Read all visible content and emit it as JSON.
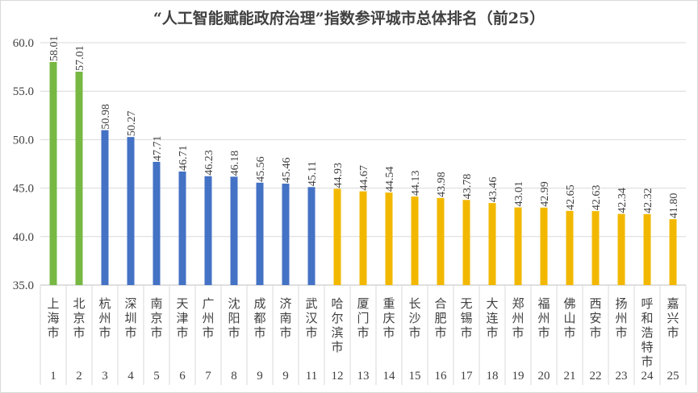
{
  "chart_data": {
    "type": "bar",
    "title": "“人工智能赋能政府治理”指数参评城市总体排名（前25）",
    "categories": [
      "上海市",
      "北京市",
      "杭州市",
      "深圳市",
      "南京市",
      "天津市",
      "广州市",
      "沈阳市",
      "成都市",
      "济南市",
      "武汉市",
      "哈尔滨市",
      "厦门市",
      "重庆市",
      "长沙市",
      "合肥市",
      "无锡市",
      "大连市",
      "郑州市",
      "福州市",
      "佛山市",
      "西安市",
      "扬州市",
      "呼和浩特市",
      "嘉兴市"
    ],
    "ranks": [
      "1",
      "2",
      "3",
      "4",
      "5",
      "6",
      "7",
      "8",
      "9",
      "9",
      "11",
      "12",
      "13",
      "14",
      "15",
      "16",
      "17",
      "18",
      "19",
      "20",
      "21",
      "22",
      "23",
      "24",
      "25"
    ],
    "values": [
      58.01,
      57.01,
      50.98,
      50.27,
      47.71,
      46.71,
      46.23,
      46.18,
      45.56,
      45.46,
      45.11,
      44.93,
      44.67,
      44.54,
      44.13,
      43.98,
      43.78,
      43.46,
      43.01,
      42.99,
      42.65,
      42.63,
      42.34,
      42.32,
      41.8
    ],
    "value_labels": [
      "58.01",
      "57.01",
      "50.98",
      "50.27",
      "47.71",
      "46.71",
      "46.23",
      "46.18",
      "45.56",
      "45.46",
      "45.11",
      "44.93",
      "44.67",
      "44.54",
      "44.13",
      "43.98",
      "43.78",
      "43.46",
      "43.01",
      "42.99",
      "42.65",
      "42.63",
      "42.34",
      "42.32",
      "41.80"
    ],
    "tier_colors": [
      "#77B843",
      "#77B843",
      "#4472C4",
      "#4472C4",
      "#4472C4",
      "#4472C4",
      "#4472C4",
      "#4472C4",
      "#4472C4",
      "#4472C4",
      "#4472C4",
      "#F2B800",
      "#F2B800",
      "#F2B800",
      "#F2B800",
      "#F2B800",
      "#F2B800",
      "#F2B800",
      "#F2B800",
      "#F2B800",
      "#F2B800",
      "#F2B800",
      "#F2B800",
      "#F2B800",
      "#F2B800"
    ],
    "yticks": [
      "35.0",
      "40.0",
      "45.0",
      "50.0",
      "55.0",
      "60.0"
    ],
    "ylim": [
      35,
      60
    ],
    "grid": true,
    "xlabel": "",
    "ylabel": ""
  }
}
